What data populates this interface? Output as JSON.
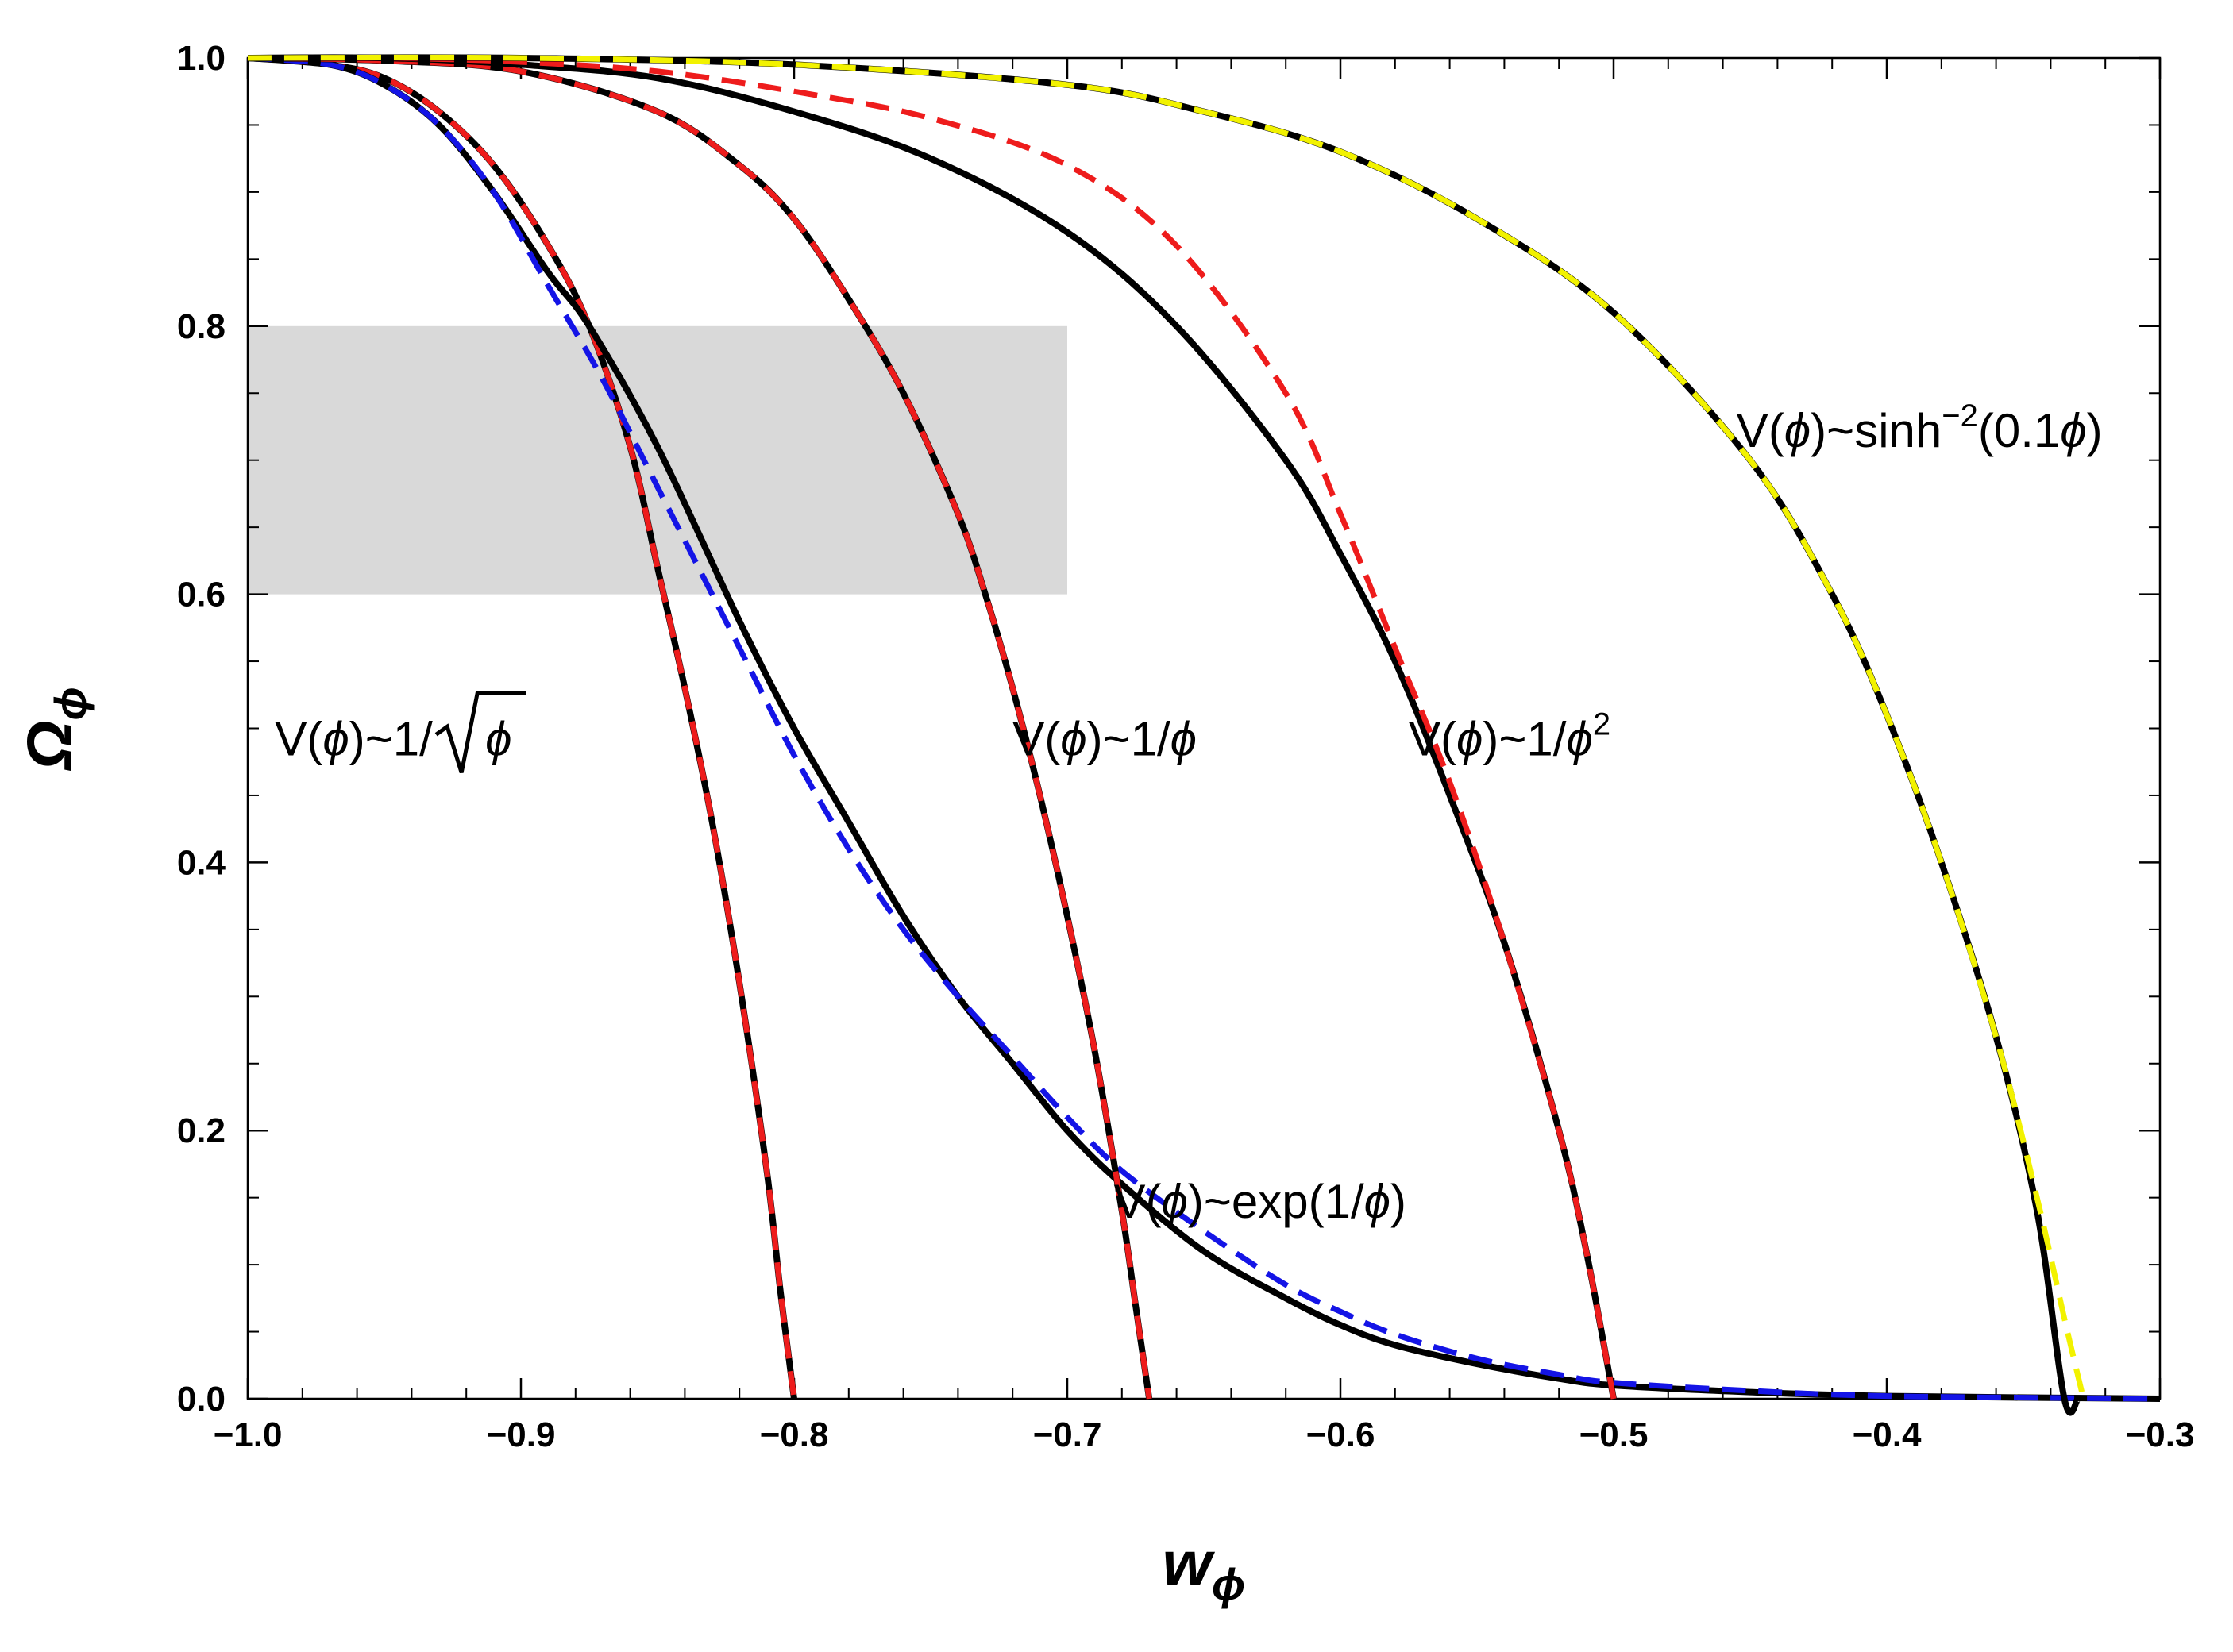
{
  "chart_data": {
    "type": "line",
    "title": "",
    "xlabel": {
      "main": "w",
      "sub": "ϕ"
    },
    "ylabel": {
      "main": "Ω",
      "sub": "ϕ"
    },
    "xlim": [
      -1.0,
      -0.3
    ],
    "ylim": [
      0.0,
      1.0
    ],
    "xticks": [
      -1.0,
      -0.9,
      -0.8,
      -0.7,
      -0.6,
      -0.5,
      -0.4,
      -0.3
    ],
    "xtick_labels": [
      "−1.0",
      "−0.9",
      "−0.8",
      "−0.7",
      "−0.6",
      "−0.5",
      "−0.4",
      "−0.3"
    ],
    "yticks": [
      0.0,
      0.2,
      0.4,
      0.6,
      0.8,
      1.0
    ],
    "ytick_labels": [
      "0.0",
      "0.2",
      "0.4",
      "0.6",
      "0.8",
      "1.0"
    ],
    "grid": false,
    "band": {
      "x": [
        -1.0,
        -0.7
      ],
      "y": [
        0.6,
        0.8
      ],
      "color": "#d9d9d9"
    },
    "colors": {
      "black": "#000000",
      "red": "#ee1c1c",
      "blue": "#1414e6",
      "yellow": "#f2f200",
      "band": "#d9d9d9"
    },
    "series": [
      {
        "name": "inv-sqrt-numerical",
        "style": "solid",
        "color": "#000000",
        "x": [
          -1.0,
          -0.97,
          -0.95,
          -0.93,
          -0.91,
          -0.89,
          -0.875,
          -0.86,
          -0.85,
          -0.84,
          -0.83,
          -0.82,
          -0.81,
          -0.805,
          -0.8
        ],
        "y": [
          1.0,
          0.995,
          0.985,
          0.96,
          0.92,
          0.86,
          0.8,
          0.71,
          0.62,
          0.53,
          0.43,
          0.31,
          0.17,
          0.08,
          0.0
        ]
      },
      {
        "name": "inv-sqrt-fit",
        "style": "dashed",
        "color": "#ee1c1c",
        "x": [
          -1.0,
          -0.97,
          -0.95,
          -0.93,
          -0.91,
          -0.89,
          -0.875,
          -0.86,
          -0.85,
          -0.84,
          -0.83,
          -0.82,
          -0.81,
          -0.805,
          -0.8
        ],
        "y": [
          1.0,
          0.995,
          0.985,
          0.96,
          0.92,
          0.86,
          0.8,
          0.71,
          0.62,
          0.53,
          0.43,
          0.31,
          0.17,
          0.08,
          0.0
        ]
      },
      {
        "name": "exp-inv-numerical",
        "style": "solid",
        "color": "#000000",
        "x": [
          -1.0,
          -0.97,
          -0.95,
          -0.93,
          -0.91,
          -0.89,
          -0.875,
          -0.85,
          -0.82,
          -0.8,
          -0.78,
          -0.76,
          -0.74,
          -0.72,
          -0.7,
          -0.68,
          -0.65,
          -0.62,
          -0.6,
          -0.58,
          -0.55,
          -0.52,
          -0.5,
          -0.45,
          -0.4,
          -0.3
        ],
        "y": [
          1.0,
          0.995,
          0.98,
          0.95,
          0.9,
          0.84,
          0.8,
          0.71,
          0.58,
          0.5,
          0.43,
          0.36,
          0.3,
          0.25,
          0.2,
          0.16,
          0.11,
          0.075,
          0.055,
          0.04,
          0.026,
          0.015,
          0.01,
          0.005,
          0.002,
          0.0
        ]
      },
      {
        "name": "exp-inv-fit",
        "style": "dashed",
        "color": "#1414e6",
        "x": [
          -1.0,
          -0.97,
          -0.95,
          -0.93,
          -0.91,
          -0.89,
          -0.87,
          -0.85,
          -0.82,
          -0.8,
          -0.78,
          -0.76,
          -0.74,
          -0.72,
          -0.7,
          -0.68,
          -0.65,
          -0.62,
          -0.6,
          -0.58,
          -0.55,
          -0.52,
          -0.5,
          -0.45,
          -0.4,
          -0.3
        ],
        "y": [
          1.0,
          0.995,
          0.98,
          0.95,
          0.9,
          0.83,
          0.76,
          0.68,
          0.56,
          0.48,
          0.41,
          0.35,
          0.3,
          0.255,
          0.21,
          0.17,
          0.125,
          0.085,
          0.065,
          0.048,
          0.03,
          0.018,
          0.012,
          0.006,
          0.002,
          0.0
        ]
      },
      {
        "name": "inv-phi-numerical",
        "style": "solid",
        "color": "#000000",
        "x": [
          -1.0,
          -0.95,
          -0.9,
          -0.85,
          -0.82,
          -0.8,
          -0.78,
          -0.76,
          -0.74,
          -0.73,
          -0.72,
          -0.71,
          -0.7,
          -0.69,
          -0.68,
          -0.675,
          -0.67
        ],
        "y": [
          1.0,
          0.998,
          0.99,
          0.96,
          0.92,
          0.88,
          0.82,
          0.75,
          0.66,
          0.6,
          0.53,
          0.45,
          0.36,
          0.26,
          0.14,
          0.07,
          0.0
        ]
      },
      {
        "name": "inv-phi-fit",
        "style": "dashed",
        "color": "#ee1c1c",
        "x": [
          -1.0,
          -0.95,
          -0.9,
          -0.85,
          -0.82,
          -0.8,
          -0.78,
          -0.76,
          -0.74,
          -0.73,
          -0.72,
          -0.71,
          -0.7,
          -0.69,
          -0.68,
          -0.675,
          -0.67
        ],
        "y": [
          1.0,
          0.998,
          0.99,
          0.96,
          0.92,
          0.88,
          0.82,
          0.75,
          0.66,
          0.6,
          0.53,
          0.45,
          0.36,
          0.26,
          0.14,
          0.07,
          0.0
        ]
      },
      {
        "name": "inv-phi2-numerical",
        "style": "solid",
        "color": "#000000",
        "x": [
          -1.0,
          -0.95,
          -0.9,
          -0.85,
          -0.8,
          -0.75,
          -0.7,
          -0.66,
          -0.62,
          -0.6,
          -0.58,
          -0.56,
          -0.54,
          -0.52,
          -0.51,
          -0.5
        ],
        "y": [
          1.0,
          1.0,
          0.995,
          0.985,
          0.96,
          0.925,
          0.87,
          0.8,
          0.7,
          0.63,
          0.55,
          0.45,
          0.34,
          0.2,
          0.11,
          0.0
        ]
      },
      {
        "name": "inv-phi2-fit",
        "style": "dashed",
        "color": "#ee1c1c",
        "x": [
          -1.0,
          -0.95,
          -0.9,
          -0.85,
          -0.8,
          -0.75,
          -0.7,
          -0.66,
          -0.62,
          -0.6,
          -0.58,
          -0.56,
          -0.54,
          -0.52,
          -0.51,
          -0.5
        ],
        "y": [
          1.0,
          1.0,
          0.997,
          0.99,
          0.975,
          0.955,
          0.92,
          0.86,
          0.75,
          0.66,
          0.56,
          0.46,
          0.34,
          0.2,
          0.11,
          0.0
        ]
      },
      {
        "name": "sinh-numerical",
        "style": "solid",
        "color": "#000000",
        "x": [
          -1.0,
          -0.9,
          -0.8,
          -0.7,
          -0.65,
          -0.6,
          -0.55,
          -0.5,
          -0.45,
          -0.42,
          -0.4,
          -0.38,
          -0.36,
          -0.345,
          -0.335,
          -0.33
        ],
        "y": [
          1.0,
          1.0,
          0.995,
          0.98,
          0.96,
          0.93,
          0.88,
          0.81,
          0.7,
          0.6,
          0.51,
          0.4,
          0.27,
          0.14,
          0.0,
          0.0
        ]
      },
      {
        "name": "sinh-fit",
        "style": "dashed",
        "color": "#f2f200",
        "x": [
          -1.0,
          -0.9,
          -0.8,
          -0.7,
          -0.65,
          -0.6,
          -0.55,
          -0.5,
          -0.45,
          -0.42,
          -0.4,
          -0.38,
          -0.36,
          -0.345,
          -0.335,
          -0.328
        ],
        "y": [
          1.0,
          1.0,
          0.995,
          0.98,
          0.96,
          0.93,
          0.88,
          0.81,
          0.7,
          0.6,
          0.51,
          0.4,
          0.27,
          0.15,
          0.06,
          0.0
        ]
      }
    ],
    "annotations": [
      {
        "id": "inv-sqrt",
        "pre": "V(",
        "phi": "ϕ",
        "post": ")~1/",
        "root": "ϕ",
        "x": -0.99,
        "y": 0.48
      },
      {
        "id": "inv-phi",
        "pre": "V(",
        "phi": "ϕ",
        "post": ")~1/",
        "tail": "ϕ",
        "x": -0.72,
        "y": 0.48
      },
      {
        "id": "inv-phi2",
        "pre": "V(",
        "phi": "ϕ",
        "post": ")~1/",
        "tail": "ϕ",
        "exp": "2",
        "x": -0.575,
        "y": 0.48
      },
      {
        "id": "exp-inv",
        "pre": "V(",
        "phi": "ϕ",
        "post": ")~exp(1/",
        "tail": "ϕ",
        "close": ")",
        "x": -0.683,
        "y": 0.135
      },
      {
        "id": "sinh",
        "pre": "V(",
        "phi": "ϕ",
        "post": ")~sinh",
        "exp": "−2",
        "mid": "(0.1",
        "tail": "ϕ",
        "close": ")",
        "x": -0.455,
        "y": 0.71
      }
    ]
  }
}
